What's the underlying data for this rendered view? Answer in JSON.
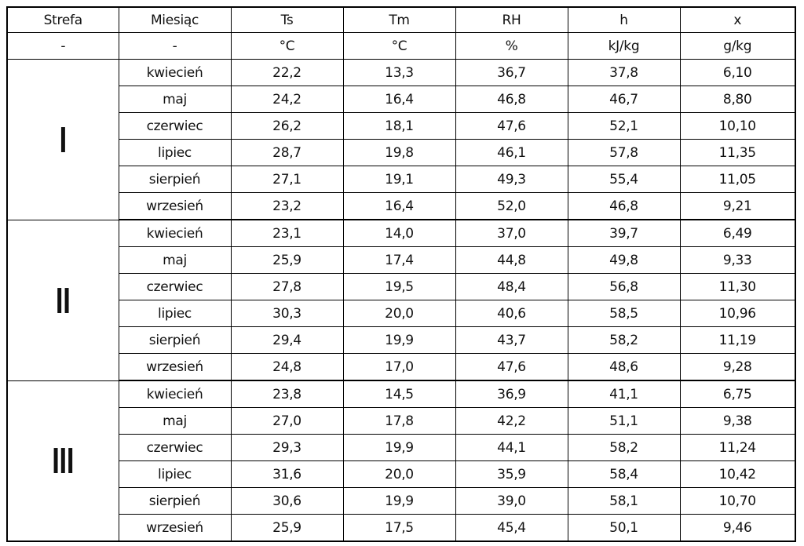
{
  "table": {
    "header": [
      "Strefa",
      "Miesiąc",
      "Ts",
      "Tm",
      "RH",
      "h",
      "x"
    ],
    "units": [
      "-",
      "-",
      "°C",
      "°C",
      "%",
      "kJ/kg",
      "g/kg"
    ],
    "zones": [
      {
        "name": "I",
        "rows": [
          [
            "kwiecień",
            "22,2",
            "13,3",
            "36,7",
            "37,8",
            "6,10"
          ],
          [
            "maj",
            "24,2",
            "16,4",
            "46,8",
            "46,7",
            "8,80"
          ],
          [
            "czerwiec",
            "26,2",
            "18,1",
            "47,6",
            "52,1",
            "10,10"
          ],
          [
            "lipiec",
            "28,7",
            "19,8",
            "46,1",
            "57,8",
            "11,35"
          ],
          [
            "sierpień",
            "27,1",
            "19,1",
            "49,3",
            "55,4",
            "11,05"
          ],
          [
            "wrzesień",
            "23,2",
            "16,4",
            "52,0",
            "46,8",
            "9,21"
          ]
        ]
      },
      {
        "name": "II",
        "rows": [
          [
            "kwiecień",
            "23,1",
            "14,0",
            "37,0",
            "39,7",
            "6,49"
          ],
          [
            "maj",
            "25,9",
            "17,4",
            "44,8",
            "49,8",
            "9,33"
          ],
          [
            "czerwiec",
            "27,8",
            "19,5",
            "48,4",
            "56,8",
            "11,30"
          ],
          [
            "lipiec",
            "30,3",
            "20,0",
            "40,6",
            "58,5",
            "10,96"
          ],
          [
            "sierpień",
            "29,4",
            "19,9",
            "43,7",
            "58,2",
            "11,19"
          ],
          [
            "wrzesień",
            "24,8",
            "17,0",
            "47,6",
            "48,6",
            "9,28"
          ]
        ]
      },
      {
        "name": "III",
        "rows": [
          [
            "kwiecień",
            "23,8",
            "14,5",
            "36,9",
            "41,1",
            "6,75"
          ],
          [
            "maj",
            "27,0",
            "17,8",
            "42,2",
            "51,1",
            "9,38"
          ],
          [
            "czerwiec",
            "29,3",
            "19,9",
            "44,1",
            "58,2",
            "11,24"
          ],
          [
            "lipiec",
            "31,6",
            "20,0",
            "35,9",
            "58,4",
            "10,42"
          ],
          [
            "sierpień",
            "30,6",
            "19,9",
            "39,0",
            "58,1",
            "10,70"
          ],
          [
            "wrzesień",
            "25,9",
            "17,5",
            "45,4",
            "50,1",
            "9,46"
          ]
        ]
      }
    ]
  }
}
